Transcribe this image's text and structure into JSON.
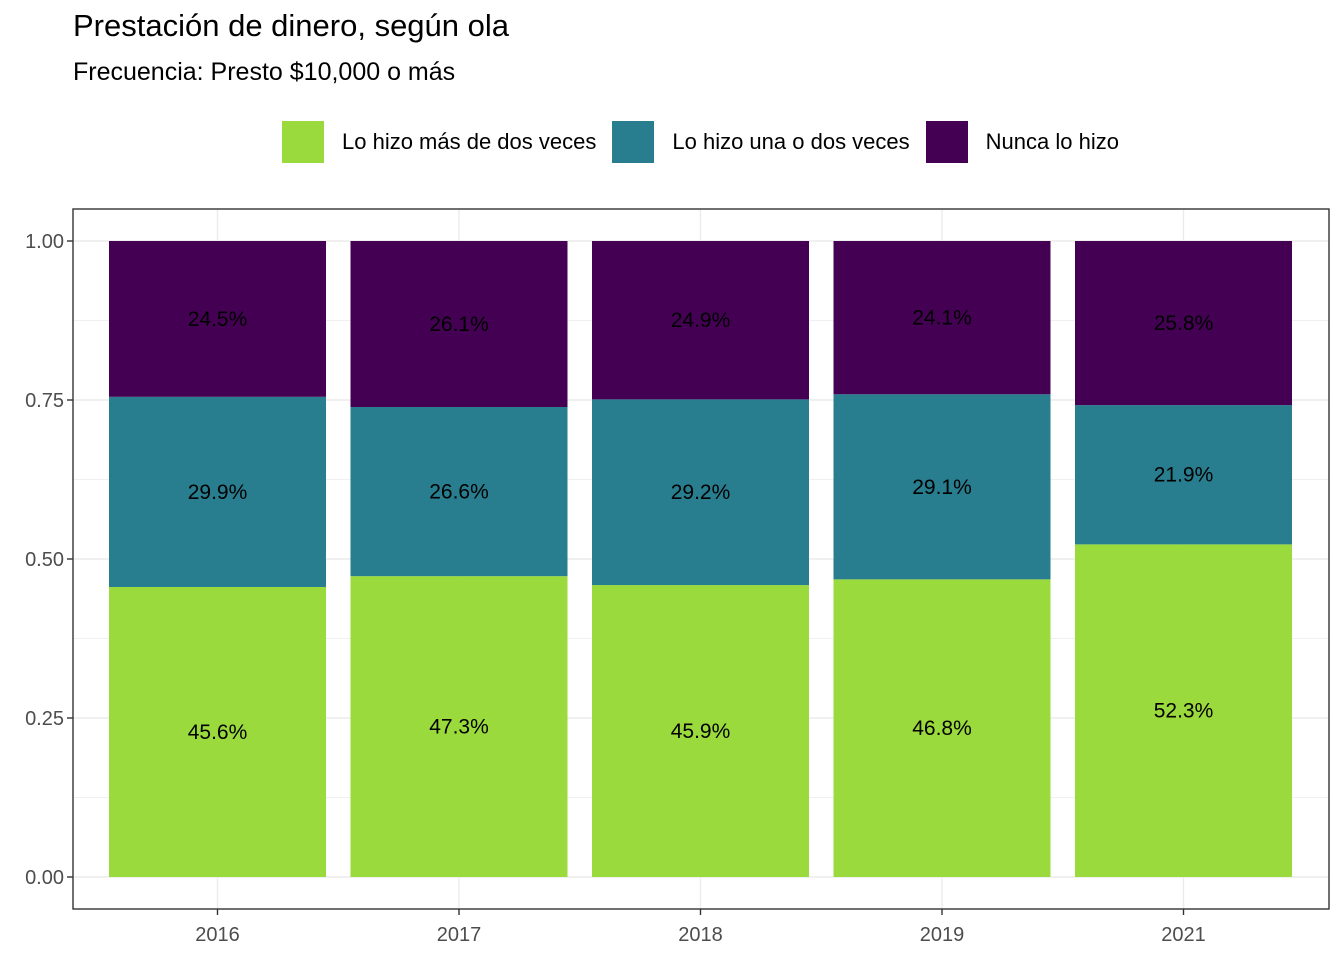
{
  "chart_data": {
    "type": "bar",
    "stacked": true,
    "title": "Prestación de dinero, según ola",
    "subtitle": "Frecuencia: Presto $10,000 o más",
    "xlabel": "",
    "ylabel": "",
    "categories": [
      "2016",
      "2017",
      "2018",
      "2019",
      "2021"
    ],
    "ylim": [
      0,
      1
    ],
    "yticks": [
      "0.00",
      "0.25",
      "0.50",
      "0.75",
      "1.00"
    ],
    "grid": true,
    "legend_position": "top",
    "series": [
      {
        "name": "Lo hizo más de dos veces",
        "color": "#9ada3c",
        "values": [
          0.456,
          0.473,
          0.459,
          0.468,
          0.523
        ],
        "labels": [
          "45.6%",
          "47.3%",
          "45.9%",
          "46.8%",
          "52.3%"
        ]
      },
      {
        "name": "Lo hizo una o dos veces",
        "color": "#287d8e",
        "values": [
          0.299,
          0.266,
          0.292,
          0.291,
          0.219
        ],
        "labels": [
          "29.9%",
          "26.6%",
          "29.2%",
          "29.1%",
          "21.9%"
        ]
      },
      {
        "name": "Nunca lo hizo",
        "color": "#440154",
        "values": [
          0.245,
          0.261,
          0.249,
          0.241,
          0.258
        ],
        "labels": [
          "24.5%",
          "26.1%",
          "24.9%",
          "24.1%",
          "25.8%"
        ]
      }
    ]
  }
}
